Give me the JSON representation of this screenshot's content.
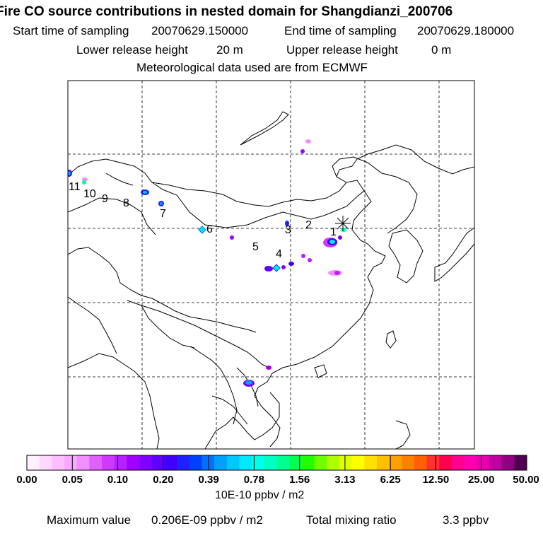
{
  "header": {
    "title": "Fire CO source contributions in nested domain for Shangdianzi_200706",
    "start_label": "Start time of sampling",
    "start_value": "20070629.150000",
    "end_label": "End time of sampling",
    "end_value": "20070629.180000",
    "lower_label": "Lower release height",
    "lower_value": "20 m",
    "upper_label": "Upper release height",
    "upper_value": "0 m",
    "met_text": "Meteorological data used are from ECMWF"
  },
  "map": {
    "receptor_marker": "asterisk-icon",
    "trajectory_labels": [
      "1",
      "2",
      "3",
      "4",
      "5",
      "6",
      "7",
      "8",
      "9",
      "10",
      "11"
    ]
  },
  "colorbar": {
    "colors": [
      "#fff0ff",
      "#ffd8ff",
      "#ffbfff",
      "#f8a8ff",
      "#f090ff",
      "#e060ff",
      "#d038ff",
      "#b820ff",
      "#a000ff",
      "#8000ff",
      "#6000ff",
      "#4000ff",
      "#2020ff",
      "#0040ff",
      "#0070ff",
      "#00a0ff",
      "#00c8ff",
      "#00e8ff",
      "#00ffe8",
      "#00ffc0",
      "#00ff90",
      "#00ff50",
      "#20ff00",
      "#70ff00",
      "#b0ff00",
      "#e0ff00",
      "#ffff00",
      "#ffe000",
      "#ffc000",
      "#ffa000",
      "#ff8000",
      "#ff6000",
      "#ff3030",
      "#ff0050",
      "#ff0090",
      "#ff00b0",
      "#e800b0",
      "#c000a0",
      "#900080",
      "#500050"
    ],
    "tick_labels": [
      "0.00",
      "0.05",
      "0.10",
      "0.20",
      "0.39",
      "0.78",
      "1.56",
      "3.13",
      "6.25",
      "12.50",
      "25.00",
      "50.00"
    ],
    "units": "10E-10 ppbv / m2"
  },
  "footer": {
    "max_label": "Maximum value",
    "max_value": "0.206E-09 ppbv / m2",
    "total_label": "Total mixing ratio",
    "total_value": "3.3 ppbv"
  }
}
